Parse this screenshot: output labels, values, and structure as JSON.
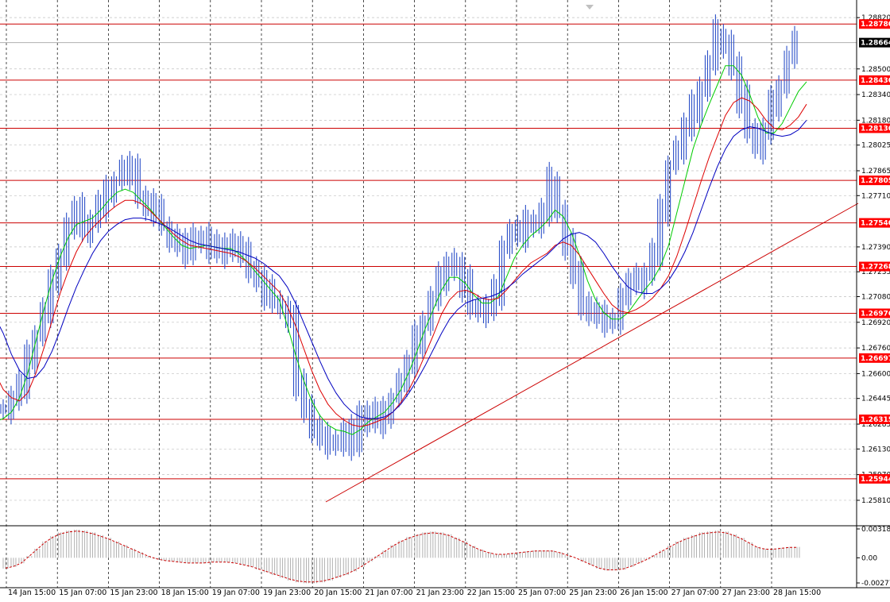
{
  "chart_data": {
    "type": "candlestick",
    "instrument_note": "",
    "price_axis": {
      "ticks": [
        "1.28820",
        "1.28500",
        "1.28340",
        "1.28180",
        "1.28025",
        "1.27865",
        "1.27710",
        "1.27390",
        "1.27235",
        "1.27080",
        "1.26920",
        "1.26760",
        "1.26600",
        "1.26445",
        "1.26285",
        "1.26130",
        "1.25970",
        "1.25810"
      ],
      "range": [
        1.2578,
        1.289
      ]
    },
    "oscillator_axis": {
      "ticks": [
        "0.00318",
        "0.00",
        "-0.00277"
      ]
    },
    "time_axis": {
      "ticks": [
        "14 Jan 15:00",
        "15 Jan 07:00",
        "15 Jan 23:00",
        "18 Jan 15:00",
        "19 Jan 07:00",
        "19 Jan 23:00",
        "20 Jan 15:00",
        "21 Jan 07:00",
        "21 Jan 23:00",
        "22 Jan 15:00",
        "25 Jan 07:00",
        "25 Jan 23:00",
        "26 Jan 15:00",
        "27 Jan 07:00",
        "27 Jan 23:00",
        "28 Jan 15:00"
      ]
    },
    "levels": [
      {
        "label": "1.28780",
        "value": 1.2878,
        "kind": "level"
      },
      {
        "label": "1.28664",
        "value": 1.28664,
        "kind": "current"
      },
      {
        "label": "1.28430",
        "value": 1.2843,
        "kind": "level"
      },
      {
        "label": "1.28130",
        "value": 1.2813,
        "kind": "level"
      },
      {
        "label": "1.27805",
        "value": 1.27805,
        "kind": "level"
      },
      {
        "label": "1.27540",
        "value": 1.2754,
        "kind": "level"
      },
      {
        "label": "1.27268",
        "value": 1.27268,
        "kind": "level"
      },
      {
        "label": "1.26976",
        "value": 1.26976,
        "kind": "level"
      },
      {
        "label": "1.26697",
        "value": 1.26697,
        "kind": "level"
      },
      {
        "label": "1.26315",
        "value": 1.26315,
        "kind": "level"
      },
      {
        "label": "1.25944",
        "value": 1.25944,
        "kind": "level"
      }
    ],
    "trendline": {
      "from": [
        1.2594,
        1.2594
      ],
      "to": [
        1.276,
        1.276
      ]
    },
    "series": [
      {
        "key": "price",
        "values": [
          1.2638,
          1.2644,
          1.2652,
          1.2668,
          1.2683,
          1.2698,
          1.2716,
          1.2735,
          1.2752,
          1.276,
          1.2748,
          1.2755,
          1.2765,
          1.2772,
          1.278,
          1.2788,
          1.2784,
          1.277,
          1.2766,
          1.276,
          1.2752,
          1.2745,
          1.274,
          1.2736,
          1.2741,
          1.2745,
          1.2738,
          1.2736,
          1.2742,
          1.2738,
          1.2732,
          1.2726,
          1.2718,
          1.271,
          1.2706,
          1.27,
          1.2695,
          1.265,
          1.264,
          1.2625,
          1.2618,
          1.2616,
          1.2619,
          1.2624,
          1.2614,
          1.263,
          1.2636,
          1.263,
          1.2634,
          1.2645,
          1.2655,
          1.2664,
          1.268,
          1.2692,
          1.2705,
          1.2718,
          1.273,
          1.2725,
          1.2715,
          1.2702,
          1.2698,
          1.27,
          1.271,
          1.274,
          1.2748,
          1.2745,
          1.2752,
          1.2755,
          1.276,
          1.278,
          1.276,
          1.274,
          1.272,
          1.2704,
          1.2698,
          1.2694,
          1.2692,
          1.2695,
          1.2708,
          1.2715,
          1.2716,
          1.2722,
          1.2735,
          1.276,
          1.279,
          1.28,
          1.2812,
          1.2824,
          1.2838,
          1.2852,
          1.2872,
          1.2866,
          1.285,
          1.283,
          1.2812,
          1.28,
          1.281,
          1.2828,
          1.284,
          1.2856,
          1.2866
        ]
      },
      {
        "key": "ma_fast",
        "values": [
          1.263,
          1.2632,
          1.2636,
          1.2645,
          1.266,
          1.268,
          1.27,
          1.2718,
          1.2733,
          1.2745,
          1.2753,
          1.2755,
          1.2757,
          1.2762,
          1.2768,
          1.2773,
          1.2775,
          1.2773,
          1.2768,
          1.2763,
          1.2757,
          1.2751,
          1.2745,
          1.274,
          1.2738,
          1.2739,
          1.274,
          1.2739,
          1.2738,
          1.2738,
          1.2735,
          1.273,
          1.2724,
          1.2718,
          1.2712,
          1.2706,
          1.269,
          1.2672,
          1.2656,
          1.2643,
          1.2634,
          1.2628,
          1.2625,
          1.2624,
          1.2622,
          1.2625,
          1.263,
          1.2633,
          1.2636,
          1.2642,
          1.265,
          1.2661,
          1.2674,
          1.2688,
          1.27,
          1.2712,
          1.272,
          1.272,
          1.2716,
          1.2709,
          1.2704,
          1.2704,
          1.2708,
          1.272,
          1.2732,
          1.274,
          1.2746,
          1.275,
          1.2755,
          1.2762,
          1.2758,
          1.2748,
          1.2734,
          1.2718,
          1.2706,
          1.2698,
          1.2694,
          1.2694,
          1.2698,
          1.2705,
          1.2712,
          1.2718,
          1.2727,
          1.274,
          1.276,
          1.278,
          1.28,
          1.2815,
          1.2828,
          1.284,
          1.2852,
          1.2852,
          1.2846,
          1.2834,
          1.282,
          1.281,
          1.281,
          1.2816,
          1.2826,
          1.2836,
          1.2842
        ]
      },
      {
        "key": "ma_mid",
        "values": [
          1.266,
          1.265,
          1.2645,
          1.2643,
          1.2648,
          1.266,
          1.2676,
          1.2693,
          1.271,
          1.2724,
          1.2736,
          1.2745,
          1.2751,
          1.2756,
          1.2761,
          1.2765,
          1.2768,
          1.2768,
          1.2766,
          1.2762,
          1.2757,
          1.2752,
          1.2747,
          1.2743,
          1.274,
          1.2739,
          1.2738,
          1.2737,
          1.2736,
          1.2735,
          1.2733,
          1.273,
          1.2726,
          1.2721,
          1.2716,
          1.2711,
          1.2702,
          1.269,
          1.2676,
          1.2662,
          1.265,
          1.2641,
          1.2635,
          1.2631,
          1.2628,
          1.2627,
          1.2628,
          1.263,
          1.2632,
          1.2636,
          1.2642,
          1.265,
          1.266,
          1.2672,
          1.2684,
          1.2697,
          1.2706,
          1.2711,
          1.2712,
          1.271,
          1.2707,
          1.2706,
          1.2707,
          1.2712,
          1.2718,
          1.2724,
          1.2729,
          1.2732,
          1.2735,
          1.274,
          1.2742,
          1.274,
          1.2734,
          1.2726,
          1.2718,
          1.271,
          1.2703,
          1.2699,
          1.2698,
          1.27,
          1.2703,
          1.2707,
          1.2713,
          1.2721,
          1.2733,
          1.2748,
          1.2764,
          1.278,
          1.2795,
          1.2808,
          1.2821,
          1.2829,
          1.2832,
          1.283,
          1.2825,
          1.2818,
          1.2813,
          1.2812,
          1.2815,
          1.282,
          1.2828
        ]
      },
      {
        "key": "ma_slow",
        "values": [
          1.2695,
          1.2685,
          1.2672,
          1.2662,
          1.2657,
          1.2658,
          1.2664,
          1.2674,
          1.2687,
          1.2701,
          1.2714,
          1.2725,
          1.2735,
          1.2743,
          1.2749,
          1.2753,
          1.2756,
          1.2757,
          1.2757,
          1.2756,
          1.2754,
          1.2752,
          1.2749,
          1.2746,
          1.2743,
          1.2741,
          1.274,
          1.2739,
          1.2738,
          1.2737,
          1.2736,
          1.2734,
          1.2732,
          1.2729,
          1.2725,
          1.2721,
          1.2714,
          1.2704,
          1.2692,
          1.268,
          1.2668,
          1.2657,
          1.2648,
          1.2641,
          1.2636,
          1.2633,
          1.2632,
          1.2632,
          1.2633,
          1.2636,
          1.2641,
          1.2648,
          1.2656,
          1.2665,
          1.2675,
          1.2685,
          1.2694,
          1.27,
          1.2704,
          1.2706,
          1.2707,
          1.2708,
          1.271,
          1.2713,
          1.2717,
          1.2722,
          1.2726,
          1.273,
          1.2734,
          1.2739,
          1.2744,
          1.2747,
          1.2748,
          1.2746,
          1.2742,
          1.2735,
          1.2727,
          1.272,
          1.2714,
          1.2711,
          1.271,
          1.271,
          1.2713,
          1.2718,
          1.2726,
          1.2736,
          1.2748,
          1.2762,
          1.2776,
          1.2789,
          1.28,
          1.2808,
          1.2812,
          1.2814,
          1.2813,
          1.2811,
          1.2809,
          1.2808,
          1.2809,
          1.2812,
          1.2818
        ]
      },
      {
        "key": "oscillator",
        "values": [
          -0.0012,
          -0.001,
          -0.0006,
          0.0002,
          0.001,
          0.0018,
          0.0024,
          0.0028,
          0.003,
          0.0031,
          0.003,
          0.0028,
          0.0025,
          0.0022,
          0.0018,
          0.0014,
          0.001,
          0.0006,
          0.0002,
          -0.0001,
          -0.0003,
          -0.0004,
          -0.0005,
          -0.0006,
          -0.0006,
          -0.0006,
          -0.0005,
          -0.0005,
          -0.0005,
          -0.0006,
          -0.0008,
          -0.001,
          -0.0013,
          -0.0016,
          -0.0019,
          -0.0022,
          -0.0025,
          -0.0027,
          -0.0028,
          -0.0028,
          -0.0027,
          -0.0025,
          -0.0022,
          -0.0019,
          -0.0015,
          -0.001,
          -0.0004,
          0.0002,
          0.0008,
          0.0014,
          0.0019,
          0.0023,
          0.0026,
          0.0028,
          0.0029,
          0.0028,
          0.0026,
          0.0022,
          0.0018,
          0.0013,
          0.0009,
          0.0006,
          0.0004,
          0.0004,
          0.0005,
          0.0006,
          0.0007,
          0.0008,
          0.0008,
          0.0008,
          0.0006,
          0.0003,
          0.0,
          -0.0004,
          -0.0008,
          -0.0012,
          -0.0014,
          -0.0014,
          -0.0013,
          -0.001,
          -0.0006,
          -0.0002,
          0.0003,
          0.0008,
          0.0013,
          0.0018,
          0.0022,
          0.0025,
          0.0028,
          0.0029,
          0.003,
          0.0029,
          0.0026,
          0.0022,
          0.0017,
          0.0012,
          0.001,
          0.001,
          0.0011,
          0.0012,
          0.0012
        ]
      }
    ]
  },
  "colors": {
    "background": "#ffffff",
    "grid": "#c0c0c0",
    "level_line": "#cc0000",
    "level_tag": "#ff0000",
    "current_tag": "#000000",
    "candles": "#2b4fc8",
    "ma_fast": "#00cc00",
    "ma_mid": "#dd0000",
    "ma_slow": "#0000c0",
    "oscillator": "#cc0000",
    "histogram": "#b0b0b0"
  }
}
